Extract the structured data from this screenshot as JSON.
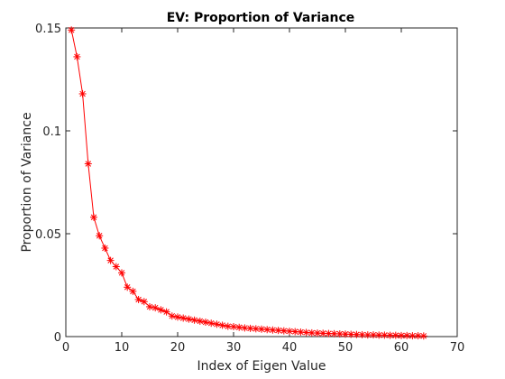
{
  "chart_data": {
    "type": "line",
    "title": "EV: Proportion of Variance",
    "xlabel": "Index of Eigen Value",
    "ylabel": "Proportion of Variance",
    "xlim": [
      0,
      70
    ],
    "ylim": [
      0,
      0.15
    ],
    "xticks": [
      "0",
      "10",
      "20",
      "30",
      "40",
      "50",
      "60",
      "70"
    ],
    "yticks": [
      "0",
      "0.05",
      "0.1",
      "0.15"
    ],
    "grid": false,
    "marker": "asterisk",
    "color": "#ff0000",
    "x": [
      1,
      2,
      3,
      4,
      5,
      6,
      7,
      8,
      9,
      10,
      11,
      12,
      13,
      14,
      15,
      16,
      17,
      18,
      19,
      20,
      21,
      22,
      23,
      24,
      25,
      26,
      27,
      28,
      29,
      30,
      31,
      32,
      33,
      34,
      35,
      36,
      37,
      38,
      39,
      40,
      41,
      42,
      43,
      44,
      45,
      46,
      47,
      48,
      49,
      50,
      51,
      52,
      53,
      54,
      55,
      56,
      57,
      58,
      59,
      60,
      61,
      62,
      63,
      64
    ],
    "values": [
      0.149,
      0.136,
      0.118,
      0.084,
      0.058,
      0.049,
      0.043,
      0.037,
      0.034,
      0.031,
      0.024,
      0.022,
      0.018,
      0.017,
      0.0145,
      0.014,
      0.013,
      0.012,
      0.01,
      0.0095,
      0.009,
      0.0085,
      0.008,
      0.0075,
      0.007,
      0.0065,
      0.006,
      0.0055,
      0.005,
      0.0048,
      0.0045,
      0.0042,
      0.004,
      0.0038,
      0.0036,
      0.0034,
      0.0032,
      0.003,
      0.0028,
      0.0026,
      0.0024,
      0.0022,
      0.002,
      0.0018,
      0.0017,
      0.0016,
      0.0015,
      0.0014,
      0.0013,
      0.0012,
      0.0011,
      0.001,
      0.0009,
      0.0008,
      0.0008,
      0.0007,
      0.0007,
      0.0006,
      0.0006,
      0.0005,
      0.0005,
      0.0004,
      0.0004,
      0.0003
    ]
  }
}
